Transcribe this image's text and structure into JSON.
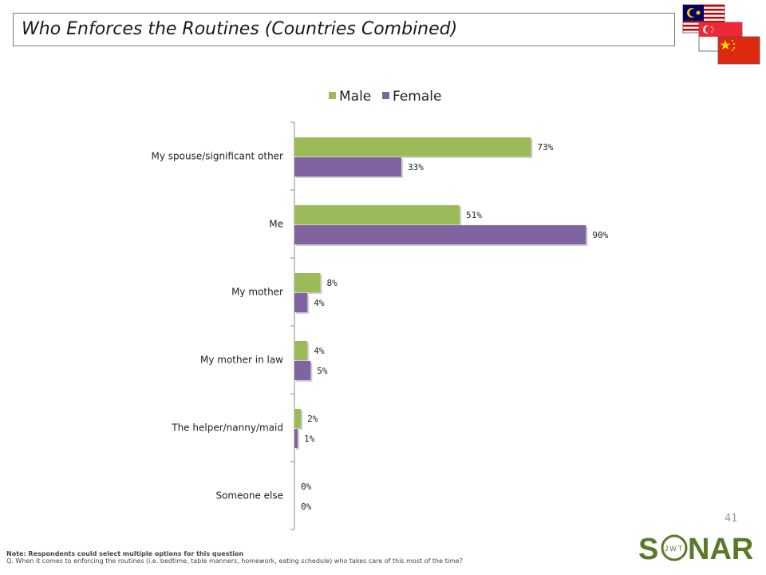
{
  "page": {
    "title": "Who Enforces the Routines (Countries Combined)",
    "page_number": "41",
    "note_label": "Note: Respondents could select multiple options for this question",
    "question": "Q. When it comes to enforcing the routines (i.e. bedtime, table manners, homework, eating schedule) who takes care of this most of the time?",
    "logo_text": "SONAR",
    "logo_sub": "JWT"
  },
  "colors": {
    "male": "#9bbb59",
    "female": "#8064a2",
    "axis": "#8c8c8c",
    "logo": "#5a7a2a"
  },
  "flags": [
    "malaysia-flag",
    "singapore-flag",
    "china-flag"
  ],
  "chart_data": {
    "type": "bar",
    "orientation": "horizontal",
    "title": "",
    "xlabel": "",
    "ylabel": "",
    "categories": [
      "My spouse/significant other",
      "Me",
      "My mother",
      "My mother in law",
      "The helper/nanny/maid",
      "Someone else"
    ],
    "series": [
      {
        "name": "Male",
        "values": [
          73,
          51,
          8,
          4,
          2,
          0
        ],
        "labels": [
          "73%",
          "51%",
          "8%",
          "4%",
          "2%",
          "0%"
        ]
      },
      {
        "name": "Female",
        "values": [
          33,
          90,
          4,
          5,
          1,
          0
        ],
        "labels": [
          "33%",
          "90%",
          "4%",
          "5%",
          "1%",
          "0%"
        ]
      }
    ],
    "xlim": [
      0,
      100
    ],
    "grid": false,
    "legend_position": "top"
  }
}
